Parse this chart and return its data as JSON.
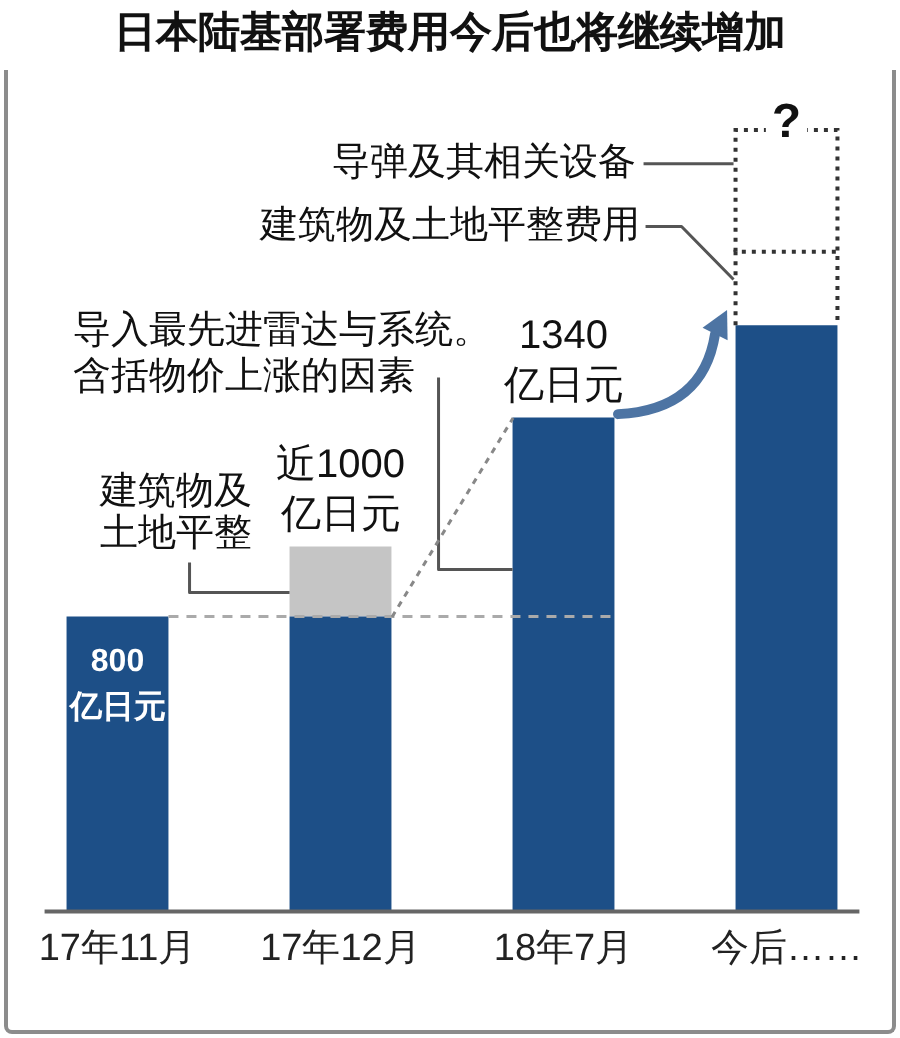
{
  "chart_data": {
    "type": "bar",
    "title": "日本陆基部署费用今后也将继续增加",
    "categories": [
      "17年11月",
      "17年12月",
      "18年7月",
      "今后……"
    ],
    "stacked": true,
    "series": [
      {
        "color": "#1d4f87",
        "values": [
          800,
          800,
          1340,
          1590
        ],
        "value_labels": [
          "800亿日元",
          null,
          "1340亿日元",
          null
        ]
      },
      {
        "name": "建筑物及土地平整",
        "color": "#c5c5c5",
        "values": [
          null,
          190,
          null,
          null
        ],
        "value_labels": [
          null,
          "近1000亿日元",
          null,
          null
        ]
      },
      {
        "name": "建筑物及土地平整费用",
        "color": "#ffffff",
        "line_style": "dotted",
        "values": [
          null,
          null,
          null,
          200
        ]
      },
      {
        "name": "导弹及其相关设备",
        "color": "#ffffff",
        "line_style": "dotted",
        "values": [
          null,
          null,
          null,
          330
        ],
        "value_labels": [
          null,
          null,
          null,
          "?"
        ]
      }
    ],
    "annotations": [
      "导入最先进雷达与系统。含括物价上涨的因素"
    ],
    "ref_lines": [
      {
        "axis": "y",
        "value": 800,
        "line_style": "dashed",
        "color": "#aaaaaa"
      }
    ],
    "tick_labels": "x",
    "grid": false,
    "legend": false
  }
}
